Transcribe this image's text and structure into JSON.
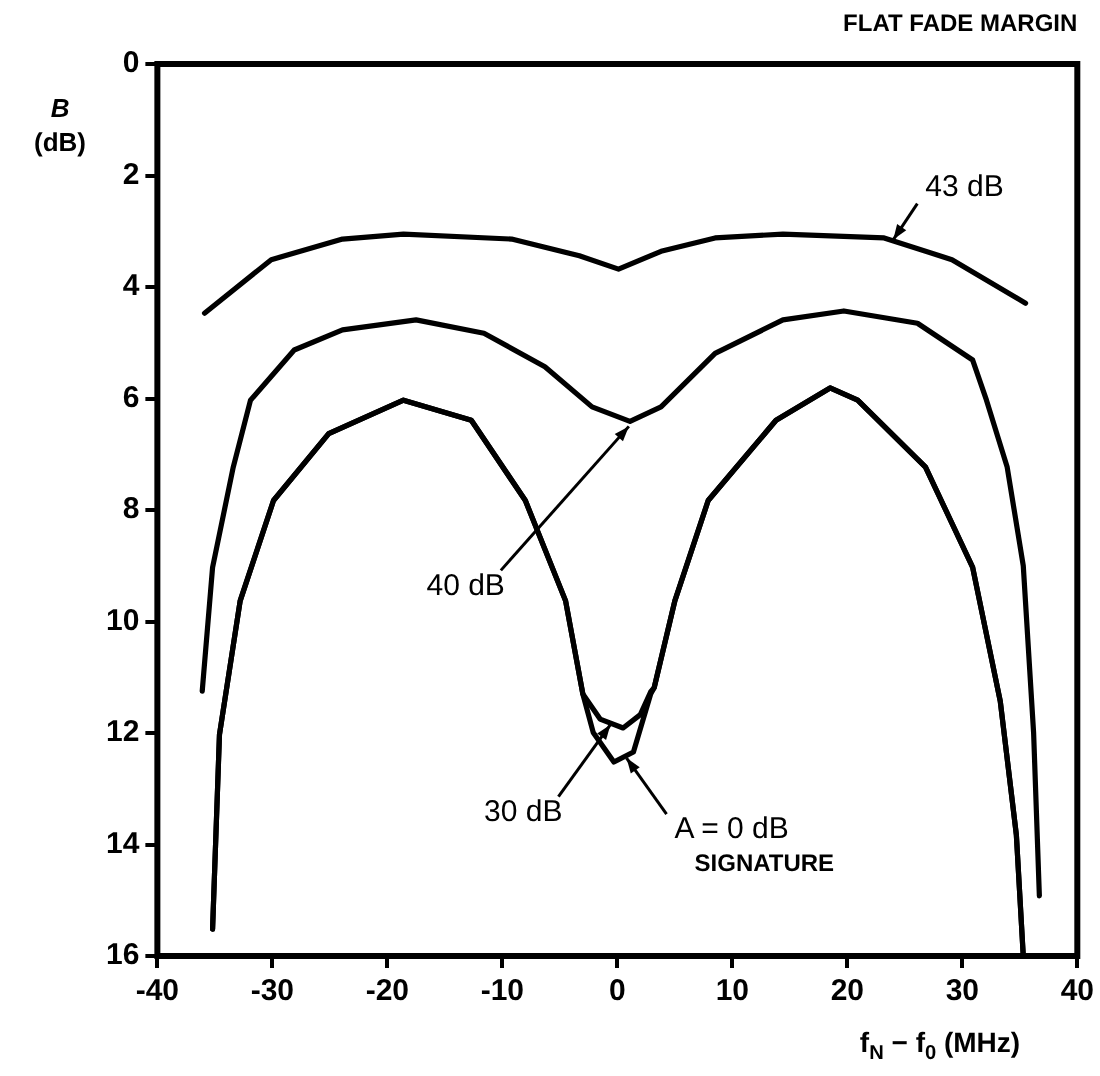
{
  "chart_data": {
    "type": "line",
    "title": "FLAT FADE MARGIN",
    "xlabel": "f$_{N}$ − f$_{0}$ (MHz)",
    "ylabel": "B (dB)",
    "xlim": [
      -40,
      40
    ],
    "xticks": [
      -40,
      -30,
      -20,
      -10,
      0,
      10,
      20,
      30,
      40
    ],
    "ylim": [
      16,
      0
    ],
    "yticks": [
      0,
      2,
      4,
      6,
      8,
      10,
      12,
      14,
      16
    ],
    "grid": false,
    "legend": false,
    "marker": "none",
    "line_style": "solid",
    "series": [
      {
        "color": "#000000",
        "x": [
          -35.9,
          -30.1,
          -23.9,
          -18.6,
          -9.2,
          -3.3,
          0.1,
          3.8,
          8.5,
          14.4,
          23.2,
          29.1,
          35.5
        ],
        "values": [
          4.47,
          3.51,
          3.14,
          3.05,
          3.14,
          3.44,
          3.68,
          3.36,
          3.12,
          3.05,
          3.12,
          3.51,
          4.29
        ]
      },
      {
        "color": "#000000",
        "x": [
          -36.1,
          -35.2,
          -33.4,
          -31.9,
          -28.1,
          -23.9,
          -17.5,
          -11.6,
          -6.3,
          -2.2,
          1.1,
          3.8,
          8.5,
          14.4,
          19.7,
          26.1,
          30.9,
          32.1,
          33.9,
          35.3,
          36.2,
          36.7
        ],
        "values": [
          11.25,
          9.03,
          7.23,
          6.03,
          5.13,
          4.77,
          4.59,
          4.83,
          5.43,
          6.15,
          6.41,
          6.15,
          5.19,
          4.59,
          4.43,
          4.65,
          5.31,
          6.03,
          7.23,
          9.0,
          12.0,
          14.92
        ]
      },
      {
        "color": "#000000",
        "x": [
          -35.2,
          -34.6,
          -32.8,
          -29.9,
          -25.1,
          -18.6,
          -12.7,
          -8.0,
          -4.5,
          -3.0,
          -1.5,
          0.5,
          2.0,
          2.9,
          3.2,
          5.0,
          7.9,
          13.8,
          18.5,
          20.9,
          26.8,
          30.9,
          33.3,
          34.7,
          35.3
        ],
        "values": [
          15.52,
          12.03,
          9.63,
          7.83,
          6.63,
          6.03,
          6.39,
          7.83,
          9.63,
          11.3,
          11.75,
          11.91,
          11.67,
          11.26,
          11.19,
          9.63,
          7.83,
          6.39,
          5.81,
          6.03,
          7.23,
          9.03,
          11.43,
          13.83,
          16.0
        ]
      },
      {
        "color": "#000000",
        "x": [
          -35.2,
          -34.6,
          -32.8,
          -29.9,
          -25.1,
          -18.6,
          -12.7,
          -8.0,
          -4.5,
          -3.0,
          -2.1,
          -0.3,
          1.4,
          2.9,
          3.2,
          5.0,
          7.9,
          13.8,
          18.5,
          20.9,
          26.8,
          30.9,
          33.3,
          34.7,
          35.3
        ],
        "values": [
          15.52,
          12.03,
          9.63,
          7.83,
          6.63,
          6.03,
          6.39,
          7.83,
          9.63,
          11.3,
          11.99,
          12.52,
          12.34,
          11.3,
          11.19,
          9.63,
          7.83,
          6.39,
          5.81,
          6.03,
          7.23,
          9.03,
          11.43,
          13.83,
          16.0
        ]
      }
    ],
    "annotations": [
      {
        "text": "43 dB",
        "x": 24,
        "y": 3.15
      },
      {
        "text": "40 dB",
        "x": 1,
        "y": 6.5
      },
      {
        "text": "30 dB",
        "x": -0.6,
        "y": 11.85
      },
      {
        "text": "A = 0 dB",
        "x": 0.8,
        "y": 12.45
      },
      "SIGNATURE"
    ]
  }
}
